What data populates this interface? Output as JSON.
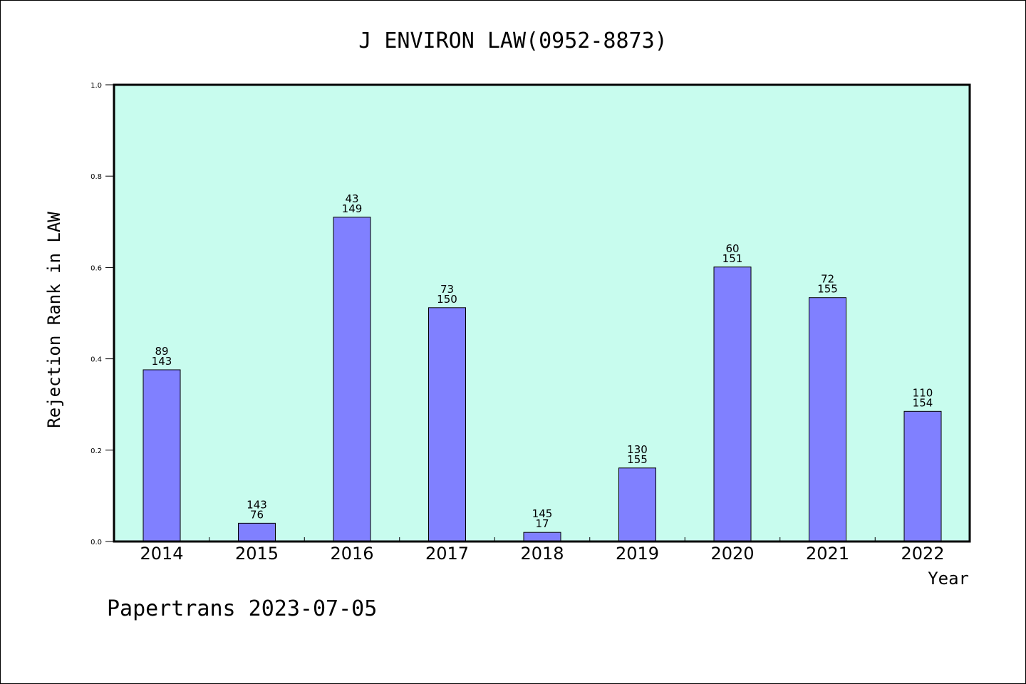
{
  "chart_data": {
    "type": "bar",
    "title": "J ENVIRON LAW(0952-8873)",
    "xlabel": "Year",
    "ylabel": "Rejection Rank in LAW",
    "ylim": [
      0,
      1.0
    ],
    "yticks": [
      "0.0",
      "0.2",
      "0.4",
      "0.6",
      "0.8",
      "1.0"
    ],
    "grid": false,
    "categories": [
      "2014",
      "2015",
      "2016",
      "2017",
      "2018",
      "2019",
      "2020",
      "2021",
      "2022"
    ],
    "values": [
      0.376,
      0.04,
      0.71,
      0.512,
      0.02,
      0.161,
      0.601,
      0.534,
      0.285
    ],
    "annotations": [
      [
        "89",
        "143"
      ],
      [
        "143",
        "76"
      ],
      [
        "43",
        "149"
      ],
      [
        "73",
        "150"
      ],
      [
        "145",
        "17"
      ],
      [
        "130",
        "155"
      ],
      [
        "60",
        "151"
      ],
      [
        "72",
        "155"
      ],
      [
        "110",
        "154"
      ]
    ],
    "colors": {
      "bar": "#8080ff",
      "plot_background": "#c8fcee",
      "frame": "#000000"
    }
  },
  "footer": {
    "text": "Papertrans 2023-07-05"
  }
}
